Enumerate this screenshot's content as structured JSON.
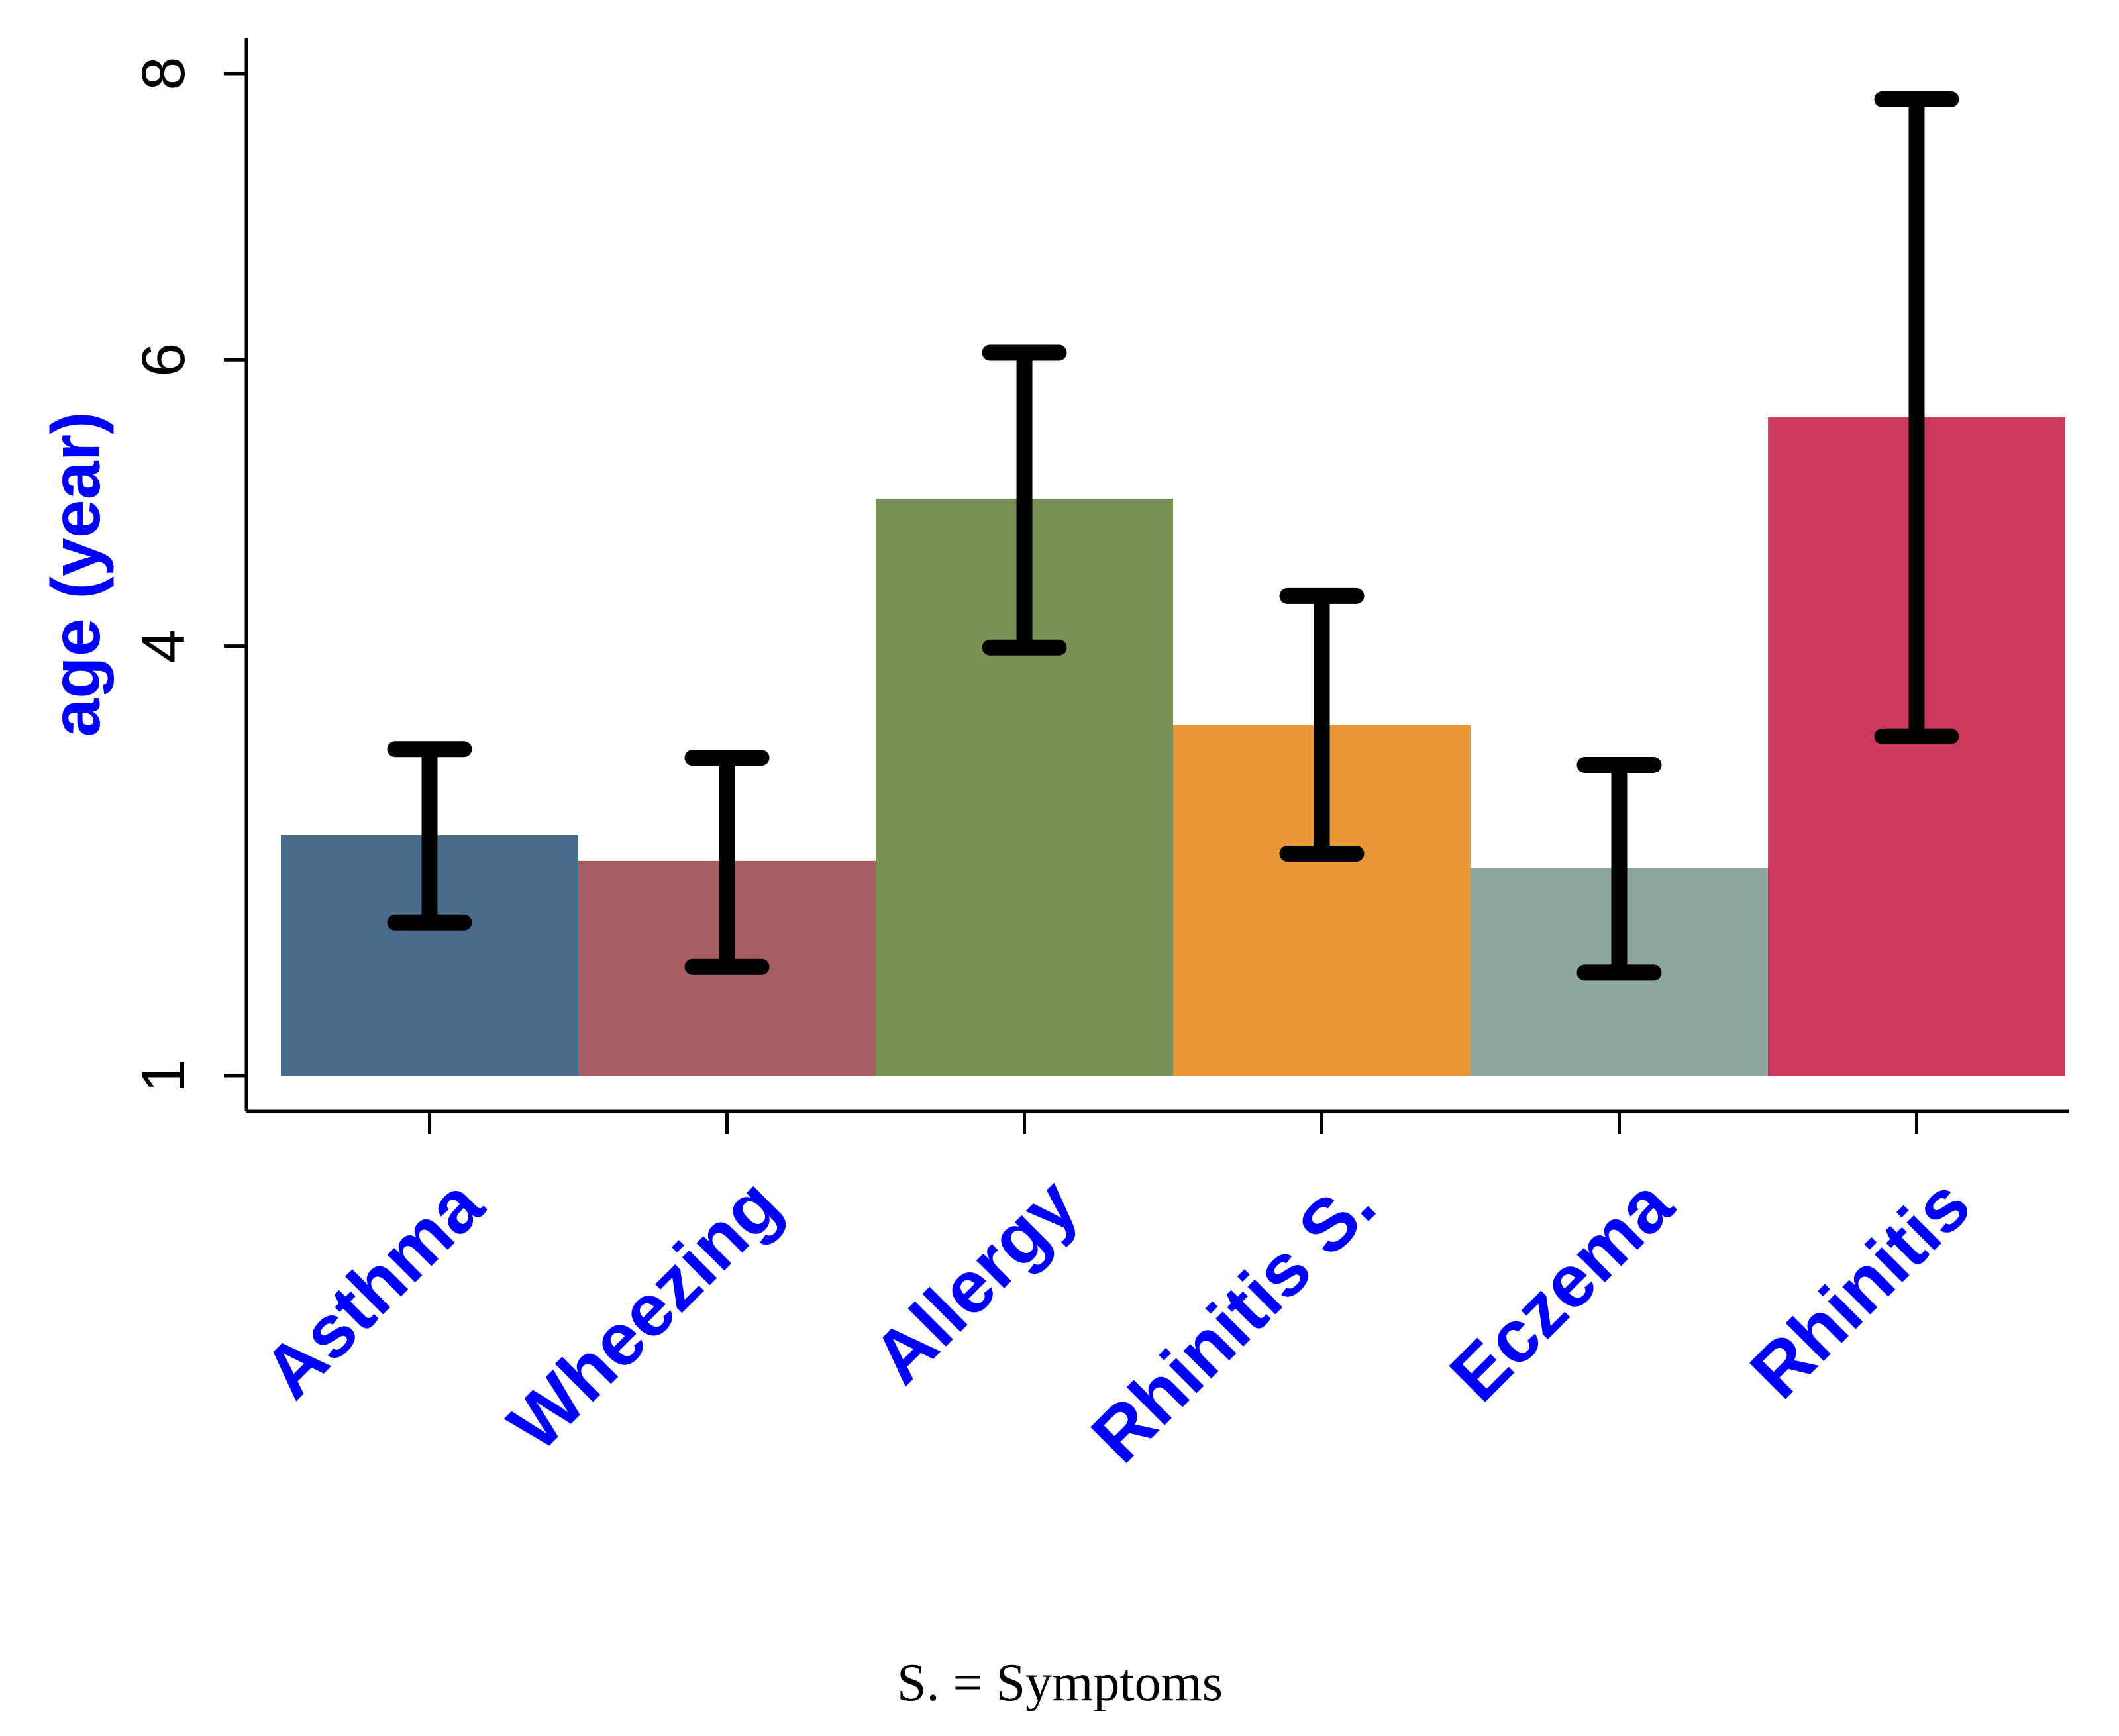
{
  "chart_data": {
    "type": "bar",
    "title": "",
    "xlabel": "",
    "ylabel": "age (year)",
    "ylim": [
      1,
      8.2
    ],
    "yticks": [
      1,
      4,
      6,
      8
    ],
    "grid": false,
    "categories": [
      "Asthma",
      "Wheezing",
      "Allergy",
      "Rhinitis S.",
      "Eczema",
      "Rhinitis"
    ],
    "values": [
      2.68,
      2.5,
      5.03,
      3.45,
      2.45,
      5.6
    ],
    "error_low": [
      2.07,
      1.76,
      3.99,
      2.55,
      1.72,
      3.37
    ],
    "error_high": [
      3.28,
      3.22,
      6.05,
      4.35,
      3.17,
      7.82
    ],
    "colors": [
      "#4a6d8c",
      "#a65e62",
      "#789055",
      "#ea9837",
      "#8ea69d",
      "#cc395d"
    ],
    "label_color": "#0000ff",
    "footnote": "S. = Symptoms"
  }
}
